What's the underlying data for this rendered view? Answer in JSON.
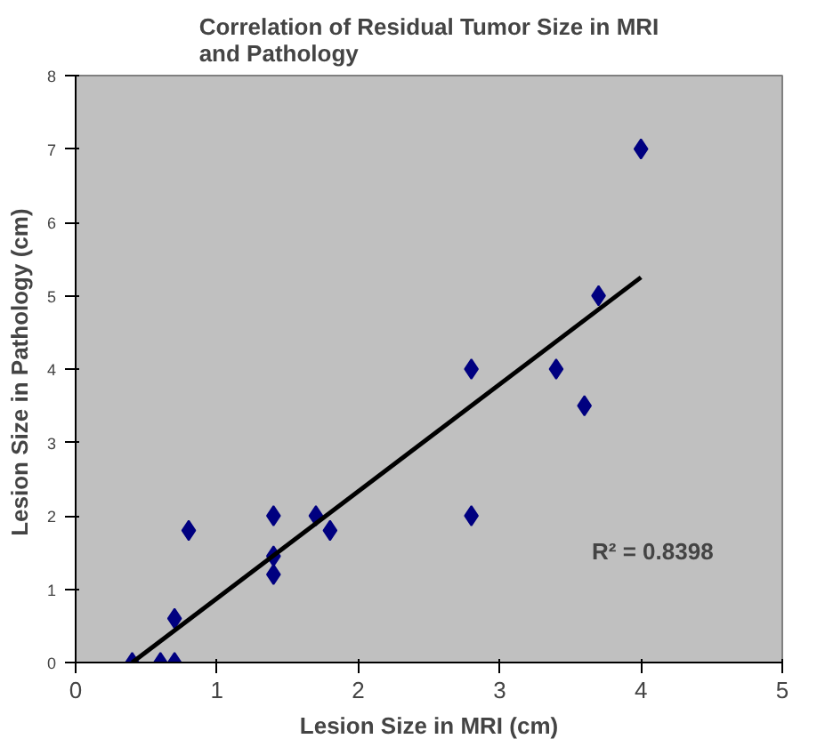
{
  "chart_data": {
    "type": "scatter",
    "title": "Correlation of Residual Tumor Size in MRI and Pathology",
    "xlabel": "Lesion Size in MRI (cm)",
    "ylabel": "Lesion Size in  Pathology (cm)",
    "xlim": [
      0,
      5
    ],
    "ylim": [
      0,
      8
    ],
    "xticks": [
      0,
      1,
      2,
      3,
      4,
      5
    ],
    "yticks": [
      0,
      1,
      2,
      3,
      4,
      5,
      6,
      7,
      8
    ],
    "grid": false,
    "series": [
      {
        "marker": "diamond",
        "color": "#000080",
        "x": [
          0.4,
          0.6,
          0.7,
          0.7,
          0.8,
          1.4,
          1.4,
          1.4,
          1.7,
          1.8,
          2.8,
          2.8,
          3.4,
          3.6,
          3.7,
          4.0
        ],
        "values": [
          0,
          0,
          0,
          0.6,
          1.8,
          2.0,
          1.45,
          1.2,
          2.0,
          1.8,
          4.0,
          2.0,
          4.0,
          3.5,
          5.0,
          7.0
        ]
      },
      {
        "type": "line",
        "color": "#000000",
        "line_style": "solid",
        "x": [
          0.4,
          4.0
        ],
        "values": [
          0,
          5.25
        ]
      }
    ],
    "annotations": [
      "R² = 0.8398"
    ]
  }
}
